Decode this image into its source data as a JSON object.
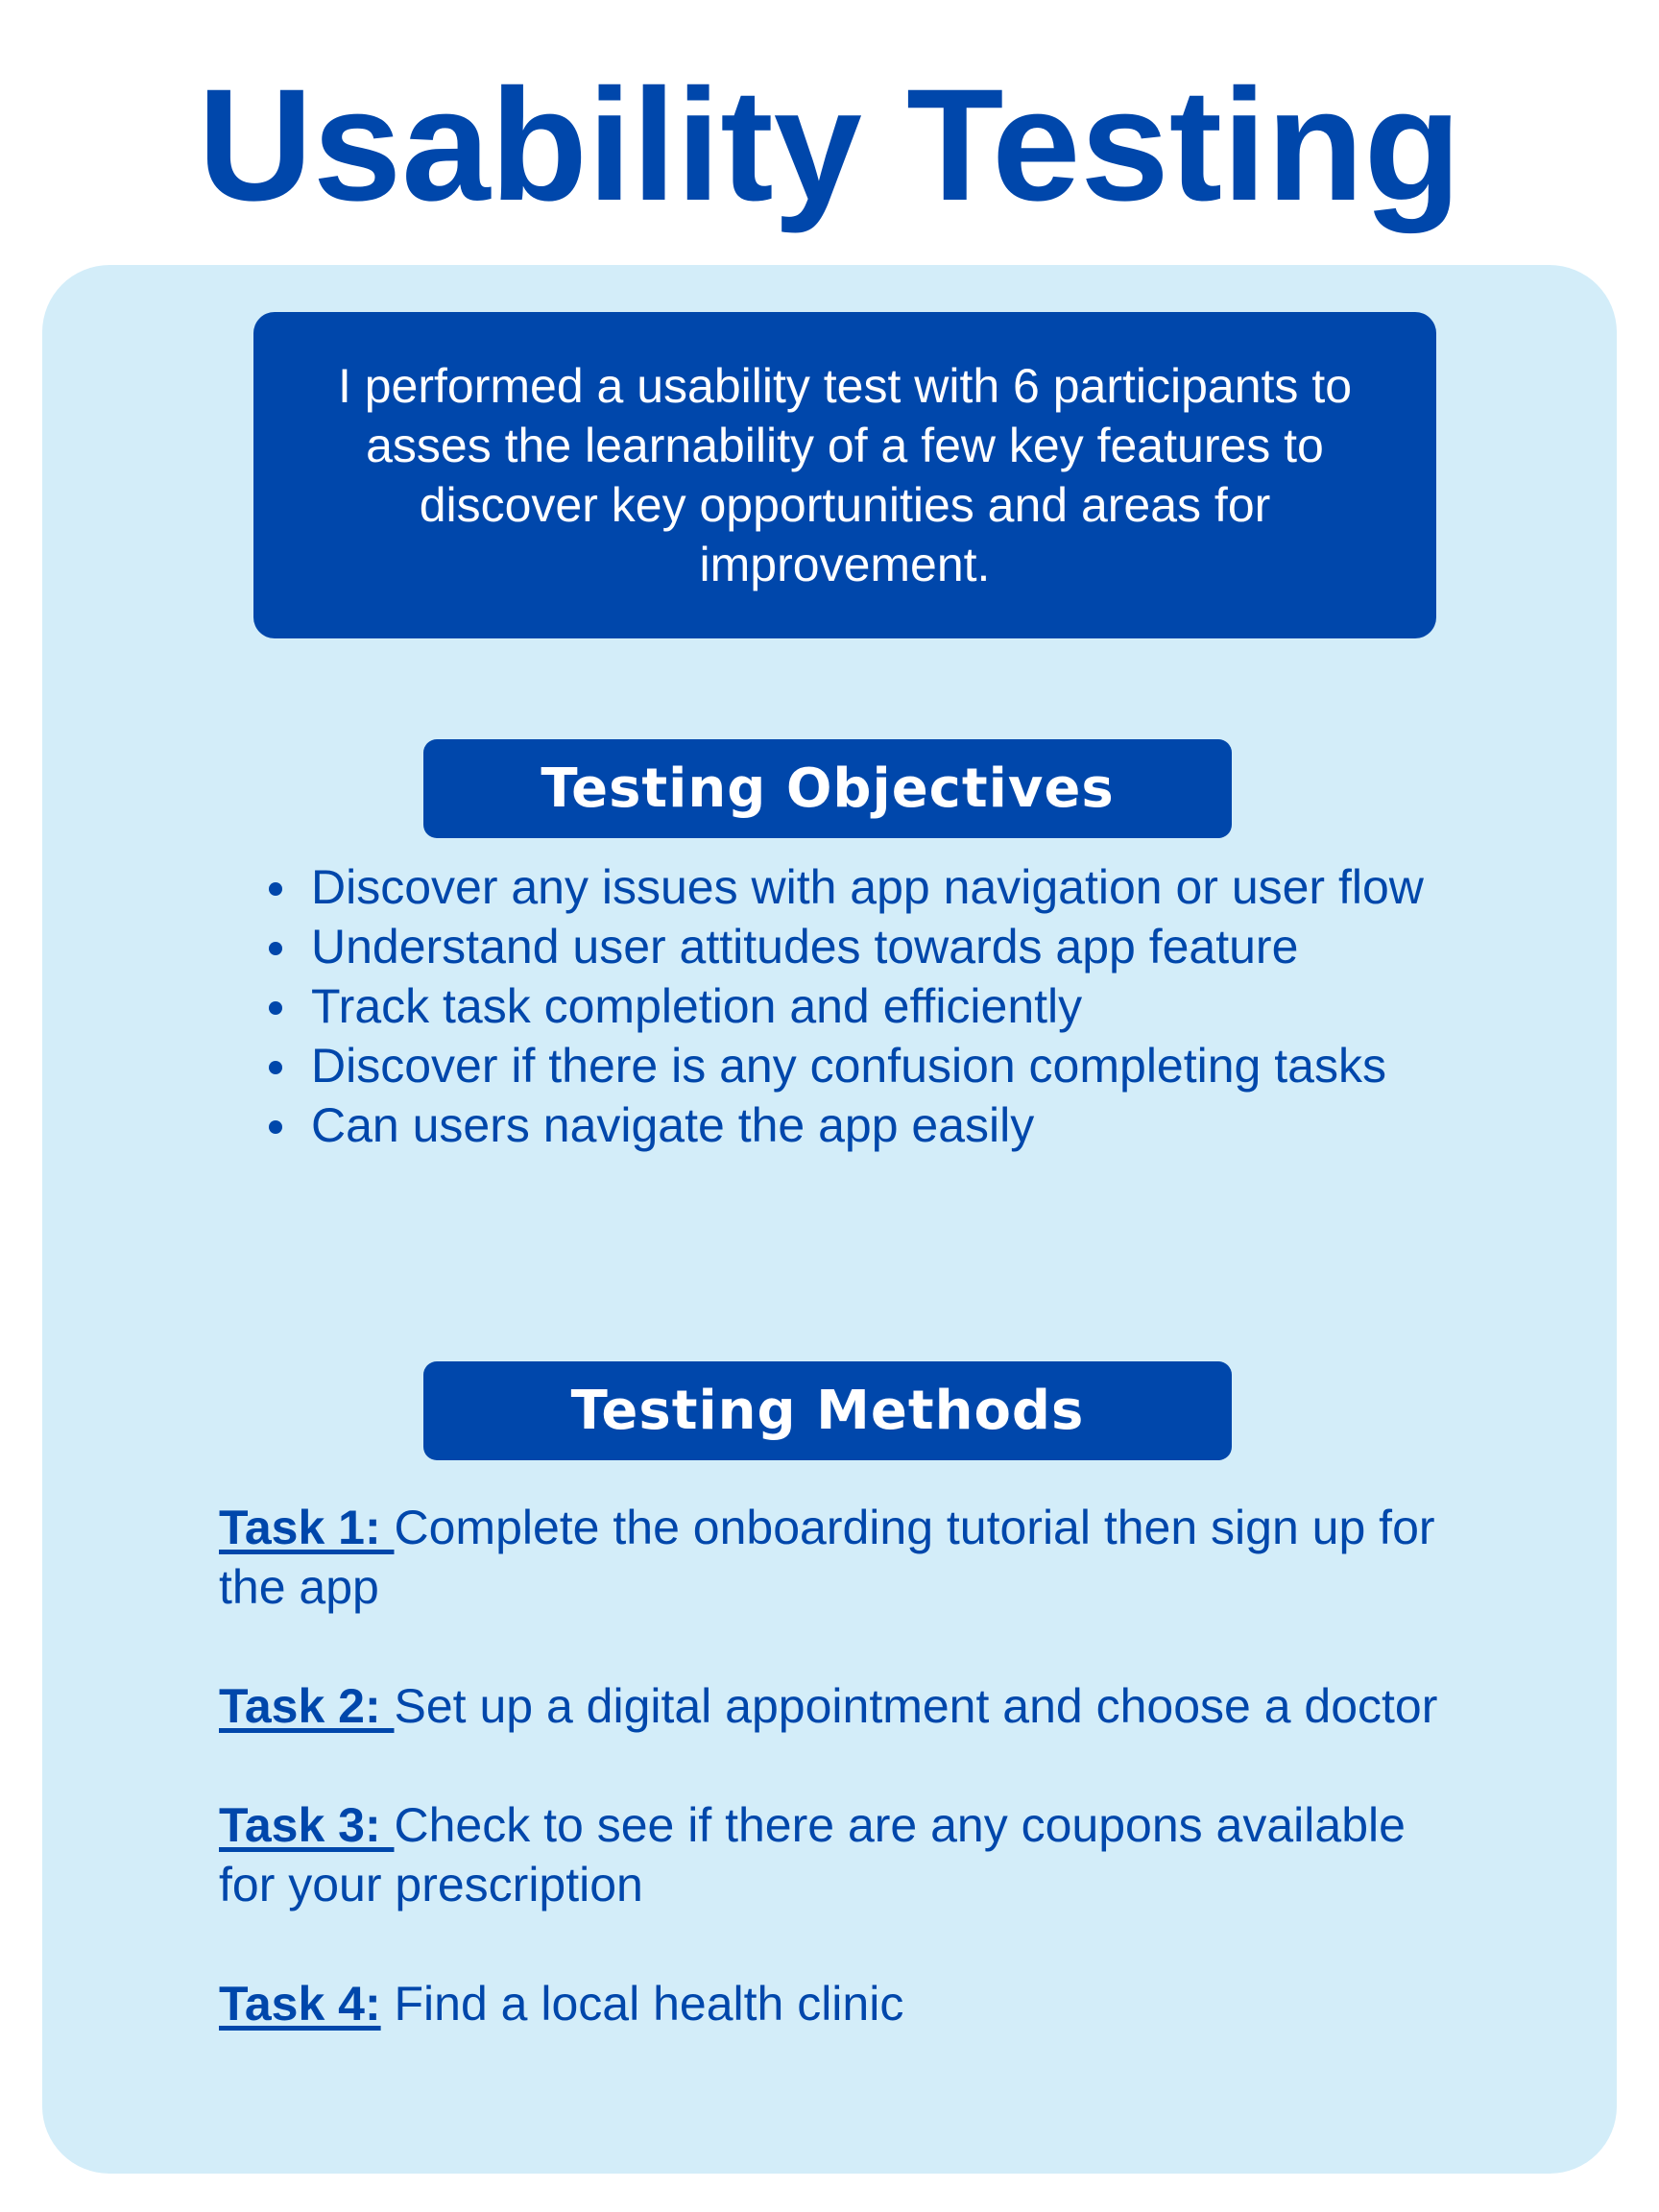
{
  "title": "Usability Testing",
  "intro": "I performed a usability test with 6 participants to asses the learnability of a few key features to discover key opportunities and areas for improvement.",
  "objectives": {
    "heading": "Testing Objectives",
    "items": [
      "Discover any issues with app navigation or user flow",
      "Understand user attitudes towards app feature",
      "Track task completion and efficiently",
      "Discover if there is any confusion completing tasks",
      "Can users navigate the app easily"
    ]
  },
  "methods": {
    "heading": "Testing Methods",
    "tasks": [
      {
        "label": "Task 1: ",
        "text": "Complete the onboarding tutorial then sign up for the app"
      },
      {
        "label": "Task 2: ",
        "text": "Set up a digital appointment and choose a doctor"
      },
      {
        "label": "Task 3: ",
        "text": "Check to see if there are any coupons available for your prescription"
      },
      {
        "label": "Task 4:",
        "text": " Find a local health clinic"
      }
    ]
  },
  "colors": {
    "primary": "#0047ab",
    "panel_background": "#d3edf9",
    "page_background": "#ffffff"
  }
}
